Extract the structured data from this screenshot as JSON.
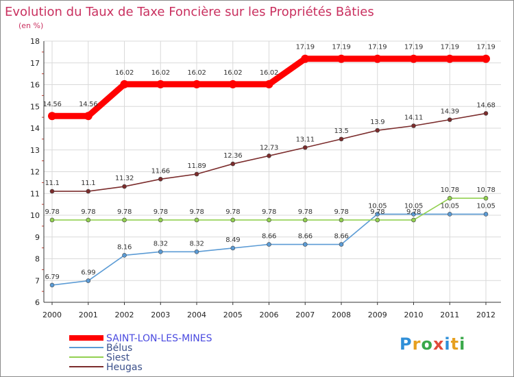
{
  "chart_data": {
    "type": "line",
    "title": "Evolution du Taux de Taxe Foncière sur les Propriétés Bâties",
    "subtitle": "(en %)",
    "xlabel": "",
    "ylabel": "",
    "categories": [
      "2000",
      "2001",
      "2002",
      "2003",
      "2004",
      "2005",
      "2006",
      "2007",
      "2008",
      "2009",
      "2010",
      "2011",
      "2012"
    ],
    "ylim": [
      6,
      18
    ],
    "yticks": [
      6,
      7,
      8,
      9,
      10,
      11,
      12,
      13,
      14,
      15,
      16,
      17,
      18
    ],
    "grid": true,
    "legend_position": "bottom-left",
    "series": [
      {
        "name": "SAINT-LON-LES-MINES",
        "color": "#ff0000",
        "emphasis": true,
        "values": [
          14.56,
          14.56,
          16.02,
          16.02,
          16.02,
          16.02,
          16.02,
          17.19,
          17.19,
          17.19,
          17.19,
          17.19,
          17.19
        ],
        "labels": [
          "14.56",
          "14.56",
          "16.02",
          "16.02",
          "16.02",
          "16.02",
          "16.02",
          "17.19",
          "17.19",
          "17.19",
          "17.19",
          "17.19",
          "17.19"
        ]
      },
      {
        "name": "Bélus",
        "color": "#5b9bd5",
        "values": [
          6.79,
          6.99,
          8.16,
          8.32,
          8.32,
          8.49,
          8.66,
          8.66,
          8.66,
          10.05,
          10.05,
          10.05,
          10.05
        ],
        "labels": [
          "6.79",
          "6.99",
          "8.16",
          "8.32",
          "8.32",
          "8.49",
          "8.66",
          "8.66",
          "8.66",
          "10.05",
          "10.05",
          "10.05",
          "10.05"
        ]
      },
      {
        "name": "Siest",
        "color": "#92d050",
        "values": [
          9.78,
          9.78,
          9.78,
          9.78,
          9.78,
          9.78,
          9.78,
          9.78,
          9.78,
          9.78,
          9.78,
          10.78,
          10.78
        ],
        "labels": [
          "9.78",
          "9.78",
          "9.78",
          "9.78",
          "9.78",
          "9.78",
          "9.78",
          "9.78",
          "9.78",
          "9.78",
          "9.78",
          "10.78",
          "10.78"
        ]
      },
      {
        "name": "Heugas",
        "color": "#7b2c2c",
        "values": [
          11.1,
          11.1,
          11.32,
          11.66,
          11.89,
          12.36,
          12.73,
          13.11,
          13.5,
          13.9,
          14.11,
          14.39,
          14.68
        ],
        "labels": [
          "11.1",
          "11.1",
          "11.32",
          "11.66",
          "11.89",
          "12.36",
          "12.73",
          "13.11",
          "13.5",
          "13.9",
          "14.11",
          "14.39",
          "14.68"
        ]
      }
    ]
  },
  "colors": {
    "title": "#c9305f",
    "legend_emphasis": "#4a4ae0",
    "axis": "#333333",
    "grid": "#d9d9d9"
  },
  "brand": {
    "letters": [
      "P",
      "r",
      "o",
      "x",
      "i",
      "t",
      "i"
    ],
    "colors": [
      "#2f8fd8",
      "#e6a020",
      "#3aa84a",
      "#e04a3a",
      "#2f8fd8",
      "#e6a020",
      "#3aa84a"
    ]
  }
}
